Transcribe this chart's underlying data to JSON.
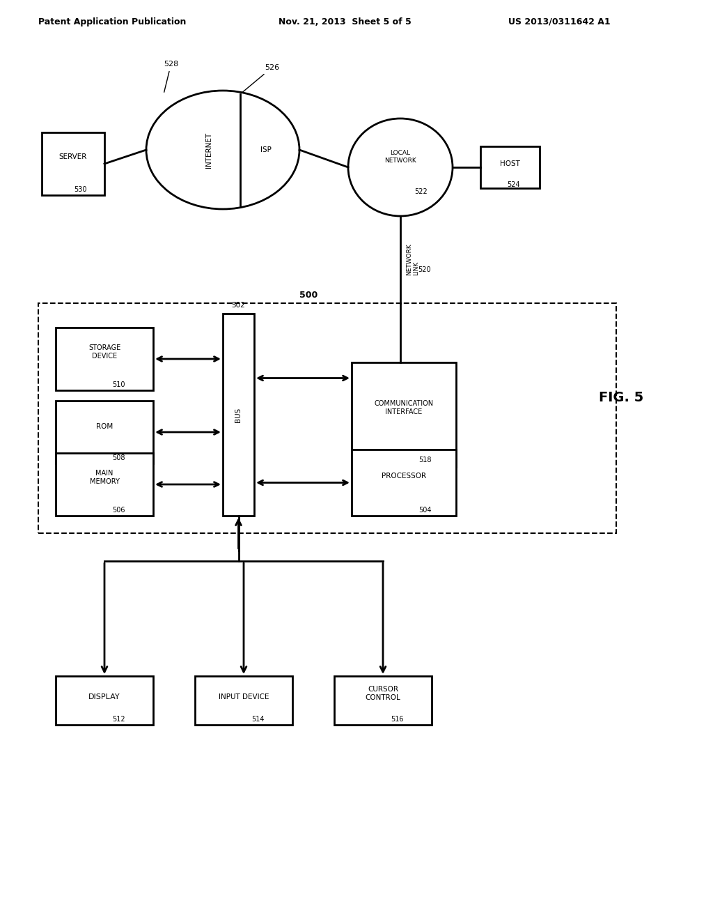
{
  "bg_color": "#ffffff",
  "header_left": "Patent Application Publication",
  "header_mid": "Nov. 21, 2013  Sheet 5 of 5",
  "header_right": "US 2013/0311642 A1",
  "fig_label": "FIG. 5",
  "diagram_label": "500",
  "components": {
    "storage_device": {
      "label": "STORAGE\nDEVICE",
      "num": "510"
    },
    "rom": {
      "label": "ROM",
      "num": "508"
    },
    "main_memory": {
      "label": "MAIN\nMEMORY",
      "num": "506"
    },
    "bus": {
      "label": "BUS",
      "num": "502"
    },
    "communication_interface": {
      "label": "COMMUNICATION\nINTERFACE",
      "num": "518"
    },
    "processor": {
      "label": "PROCESSOR",
      "num": "504"
    },
    "display": {
      "label": "DISPLAY",
      "num": "512"
    },
    "input_device": {
      "label": "INPUT DEVICE",
      "num": "514"
    },
    "cursor_control": {
      "label": "CURSOR\nCONTROL",
      "num": "516"
    },
    "internet": {
      "label": "INTERNET",
      "num": "528"
    },
    "isp": {
      "label": "ISP",
      "num": "526"
    },
    "local_network": {
      "label": "LOCAL\nNETWORK",
      "num": "522"
    },
    "host": {
      "label": "HOST",
      "num": "524"
    },
    "server": {
      "label": "SERVER",
      "num": "530"
    },
    "network_link": {
      "label": "NETWORK\nLINK",
      "num": "520"
    }
  }
}
